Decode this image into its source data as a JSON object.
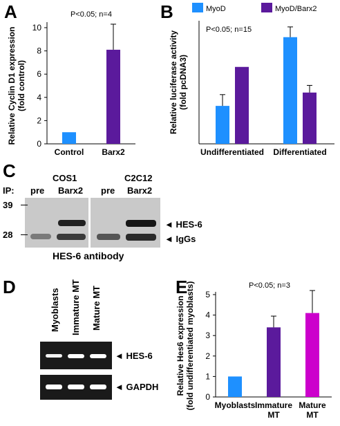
{
  "panels": {
    "A": {
      "letter": "A"
    },
    "B": {
      "letter": "B"
    },
    "C": {
      "letter": "C"
    },
    "D": {
      "letter": "D"
    },
    "E": {
      "letter": "E"
    }
  },
  "chart_data": [
    {
      "id": "A",
      "type": "bar",
      "categories": [
        "Control",
        "Barx2"
      ],
      "values": [
        1,
        8.1
      ],
      "errors": [
        0,
        2.2
      ],
      "colors": [
        "#1e90ff",
        "#5b1a9c"
      ],
      "ylabel": "Relative Cyclin D1 expression (fold control)",
      "ylabel_lines": [
        "Relative Cyclin D1 expression",
        "(fold control)"
      ],
      "ylim": [
        0,
        10
      ],
      "yticks": [
        0,
        2,
        4,
        6,
        8,
        10
      ],
      "annotation": "P<0.05; n=4"
    },
    {
      "id": "B",
      "type": "bar",
      "categories": [
        "Undifferentiated",
        "Differentiated"
      ],
      "series": [
        {
          "name": "MyoD",
          "color": "#1e90ff",
          "values": [
            3.7,
            10.4
          ],
          "errors": [
            1.1,
            1.0
          ]
        },
        {
          "name": "MyoD/Barx2",
          "color": "#5b1a9c",
          "values": [
            7.5,
            5.0
          ],
          "errors": [
            0,
            0.7
          ]
        }
      ],
      "ylabel": "Relative luciferase activity (fold pcDNA3)",
      "ylabel_lines": [
        "Relative luciferase activity",
        "(fold pcDNA3)"
      ],
      "ylim": [
        0,
        12
      ],
      "legend_position": "top",
      "annotation": "P<0.05; n=15"
    },
    {
      "id": "E",
      "type": "bar",
      "categories": [
        "Myoblasts",
        "Immature MT",
        "Mature MT"
      ],
      "category_lines": [
        [
          "Myoblasts"
        ],
        [
          "Immature",
          "MT"
        ],
        [
          "Mature",
          "MT"
        ]
      ],
      "values": [
        1,
        3.4,
        4.1
      ],
      "errors": [
        0,
        0.55,
        1.1
      ],
      "colors": [
        "#1e90ff",
        "#5b1a9c",
        "#cc00cc"
      ],
      "ylabel": "Relative Hes6 expression (fold undifferentiated myoblasts)",
      "ylabel_lines": [
        "Relative  Hes6 expression",
        "(fold undifferentiated myoblasts)"
      ],
      "ylim": [
        0,
        5
      ],
      "yticks": [
        0,
        1,
        2,
        3,
        4,
        5
      ],
      "annotation": "P<0.05; n=3"
    }
  ],
  "blotC": {
    "ip_label": "IP:",
    "groups": [
      "COS1",
      "C2C12"
    ],
    "lanes": [
      "pre",
      "Barx2",
      "pre",
      "Barx2"
    ],
    "markers": [
      "39",
      "28"
    ],
    "bands": [
      "HES-6",
      "IgGs"
    ],
    "caption": "HES-6 antibody"
  },
  "gelD": {
    "lanes": [
      "Myoblasts",
      "Immature MT",
      "Mature MT"
    ],
    "bands": [
      "HES-6",
      "GAPDH"
    ]
  }
}
